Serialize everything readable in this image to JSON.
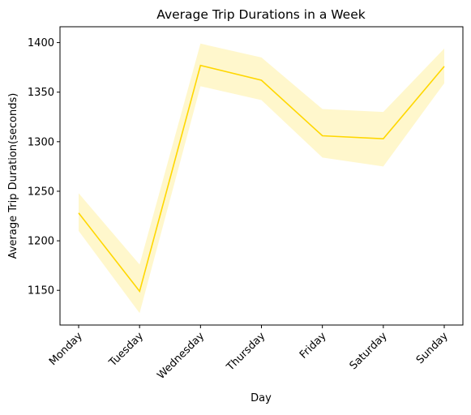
{
  "chart_data": {
    "type": "line",
    "title": "Average Trip Durations in a Week",
    "xlabel": "Day",
    "ylabel": "Average Trip Duration(seconds)",
    "categories": [
      "Monday",
      "Tuesday",
      "Wednesday",
      "Thursday",
      "Friday",
      "Saturday",
      "Sunday"
    ],
    "series": [
      {
        "values": [
          1228,
          1149,
          1377,
          1362,
          1306,
          1303,
          1376
        ],
        "ci_lower": [
          1210,
          1127,
          1356,
          1342,
          1284,
          1275,
          1359
        ],
        "ci_upper": [
          1248,
          1176,
          1399,
          1385,
          1333,
          1330,
          1394
        ],
        "color": "#ffd700",
        "band_color": "#ffd700"
      }
    ],
    "yticks": [
      1150,
      1200,
      1250,
      1300,
      1350,
      1400
    ],
    "ylim": [
      1115,
      1416
    ],
    "grid": false,
    "legend": false
  }
}
